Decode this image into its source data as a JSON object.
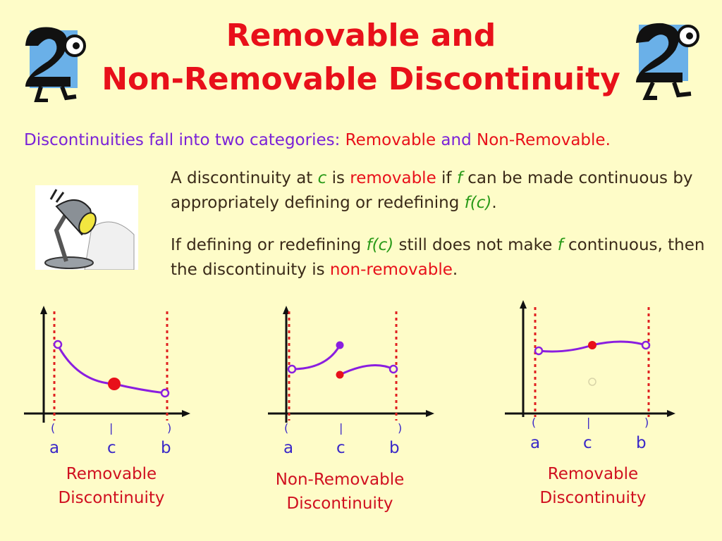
{
  "title": {
    "line1": "Removable and",
    "line2": "Non-Removable Discontinuity"
  },
  "intro": {
    "text": "Discontinuities fall into two categories: ",
    "removable": "Removable",
    "and": " and ",
    "nonremovable": "Non-Removable",
    "period": "."
  },
  "para1": {
    "a": "A discontinuity at ",
    "c": "c",
    "b": " is ",
    "removable": "removable",
    "d": " if ",
    "f": "f",
    "e": " can be made continuous by appropriately defining or redefining ",
    "fc": "f(c)",
    "end": "."
  },
  "para2": {
    "a": "If defining or redefining ",
    "fc": "f(c)",
    "b": " still does not make ",
    "f": "f",
    "c": " continuous, then the discontinuity is ",
    "nonremovable": "non-removable",
    "end": "."
  },
  "graphs": [
    {
      "labels": [
        "a",
        "c",
        "b"
      ],
      "parens": [
        "(",
        "|",
        ")"
      ],
      "caption_line1": "Removable",
      "caption_line2": "Discontinuity"
    },
    {
      "labels": [
        "a",
        "c",
        "b"
      ],
      "parens": [
        "(",
        "|",
        ")"
      ],
      "caption_line1": "Non-Removable",
      "caption_line2": "Discontinuity"
    },
    {
      "labels": [
        "a",
        "c",
        "b"
      ],
      "parens": [
        "(",
        "|",
        ")"
      ],
      "caption_line1": "Removable",
      "caption_line2": "Discontinuity"
    }
  ],
  "colors": {
    "title": "#e8101a",
    "intro": "#7a22d8",
    "curve": "#8a1ee0",
    "point": "#e8101a",
    "dashed": "#e02020",
    "label": "#3a28c8",
    "caption": "#d01020"
  }
}
